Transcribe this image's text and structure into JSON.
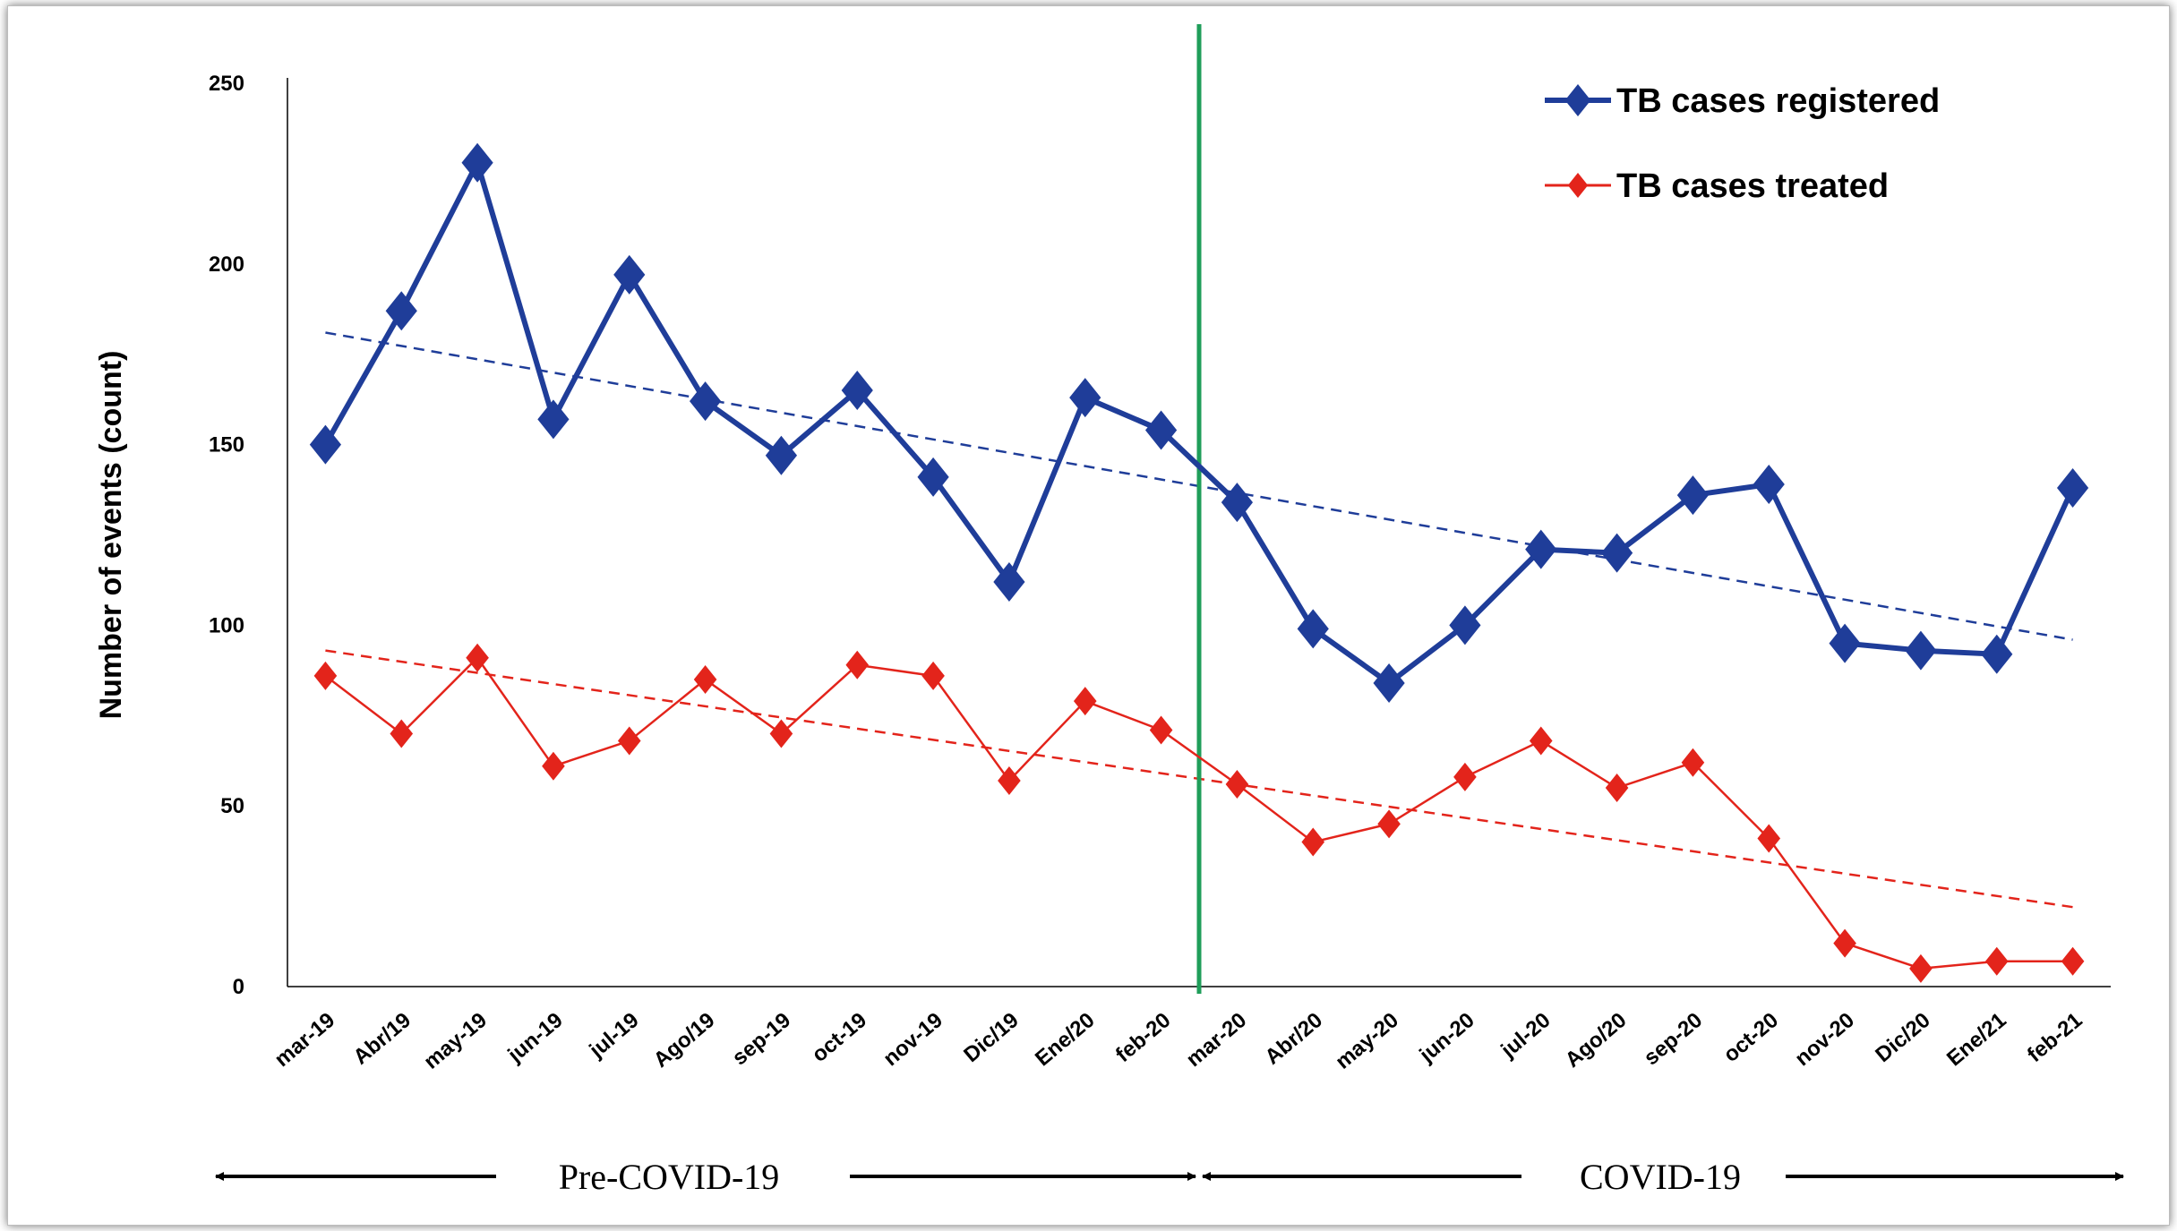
{
  "chart_data": {
    "type": "line",
    "ylabel": "Number of events (count)",
    "ylim": [
      0,
      250
    ],
    "yticks": [
      "0",
      "50",
      "100",
      "150",
      "200",
      "250"
    ],
    "categories": [
      "mar-19",
      "Abr/19",
      "may-19",
      "jun-19",
      "jul-19",
      "Ago/19",
      "sep-19",
      "oct-19",
      "nov-19",
      "Dic/19",
      "Ene/20",
      "feb-20",
      "mar-20",
      "Abr/20",
      "may-20",
      "jun-20",
      "jul-20",
      "Ago/20",
      "sep-20",
      "oct-20",
      "nov-20",
      "Dic/20",
      "Ene/21",
      "feb-21"
    ],
    "series": [
      {
        "name": "TB cases registered",
        "color": "#1f3d99",
        "values": [
          150,
          187,
          228,
          157,
          197,
          162,
          147,
          165,
          141,
          112,
          163,
          154,
          134,
          99,
          84,
          100,
          121,
          120,
          136,
          139,
          95,
          93,
          92,
          138
        ],
        "trendline": [
          181,
          96
        ]
      },
      {
        "name": "TB cases treated",
        "color": "#e3241b",
        "values": [
          86,
          70,
          91,
          61,
          68,
          85,
          70,
          89,
          86,
          57,
          79,
          71,
          56,
          40,
          45,
          58,
          68,
          55,
          62,
          41,
          12,
          5,
          7,
          7
        ],
        "trendline": [
          93,
          22
        ]
      }
    ],
    "divider_after_category": "feb-20",
    "divider_color": "#1f9e5a",
    "legend_position": "top-right",
    "periods": [
      {
        "label": "Pre-COVID-19"
      },
      {
        "label": "COVID-19"
      }
    ]
  }
}
